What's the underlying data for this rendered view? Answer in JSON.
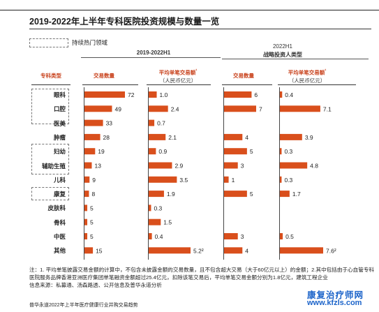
{
  "title": "2019-2022年上半年专科医院投资规模与数量一览",
  "legend": {
    "label": "持续热门领域"
  },
  "groups": {
    "left": "2019-2022H1",
    "right_line1": "2022H1",
    "right_line2": "战略投资人类型"
  },
  "columns": {
    "category": "专科类型",
    "count": "交易数量",
    "avg": "平均单笔交易额",
    "avg_sup": "¹",
    "avg_unit": "（人民币亿元）"
  },
  "colors": {
    "bar": "#d94f1c",
    "label_accent": "#c8401a"
  },
  "chart_data": {
    "type": "bar",
    "categories": [
      "眼科",
      "口腔",
      "医美",
      "肿瘤",
      "妇幼",
      "辅助生殖",
      "儿科",
      "康复",
      "皮肤科",
      "骨科",
      "中医",
      "其他"
    ],
    "series": [
      {
        "values": [
          72,
          49,
          33,
          28,
          19,
          13,
          9,
          8,
          5,
          5,
          5,
          15
        ],
        "labels": [
          "72",
          "49",
          "33",
          "28",
          "19",
          "13",
          "9",
          "8",
          "5",
          "5",
          "5",
          "15"
        ]
      },
      {
        "values": [
          1.0,
          2.4,
          0.7,
          2.1,
          0.9,
          2.9,
          3.5,
          1.9,
          0.3,
          1.5,
          0.4,
          5.2
        ],
        "labels": [
          "1.0",
          "2.4",
          "0.7",
          "2.1",
          "0.9",
          "2.9",
          "3.5",
          "1.9",
          "0.3",
          "1.5",
          "0.4",
          "5.2²"
        ]
      },
      {
        "values": [
          6,
          7,
          null,
          4,
          5,
          3,
          1,
          5,
          null,
          null,
          3,
          4
        ],
        "labels": [
          "6",
          "7",
          "",
          "4",
          "5",
          "3",
          "1",
          "5",
          "",
          "",
          "3",
          "4"
        ]
      },
      {
        "values": [
          0.4,
          7.1,
          null,
          3.9,
          0.3,
          4.8,
          0.3,
          1.7,
          null,
          null,
          0.5,
          7.6
        ],
        "labels": [
          "0.4",
          "7.1",
          "",
          "3.9",
          "0.3",
          "4.8",
          "0.3",
          "1.7",
          "",
          "",
          "0.5",
          "7.6²"
        ]
      }
    ],
    "highlighted_categories": [
      "眼科",
      "口腔",
      "妇幼",
      "辅助生殖",
      "康复"
    ]
  },
  "notes": "注：1. 平均单笔披露交易金额的计算中，不包含未披露金额的交易数量，且不包含超大交易（大于60亿元以上）的金额；2.其中包括由于心血管专科医院服务品牌香港亚洲医疗集团单笔融资金额超过25.4亿元，扣除该笔交易后，平均单笔交易金额分别为1.8亿元，建筑工程企业",
  "source": "信息来源：私募通、汤森路透、公开信息及普华永道分析",
  "footer": "普华永道2022年上半年医疗健康行业并购交易趋势",
  "watermark": {
    "line1": "康复治疗师网",
    "line2": "www.kfzls.com"
  }
}
